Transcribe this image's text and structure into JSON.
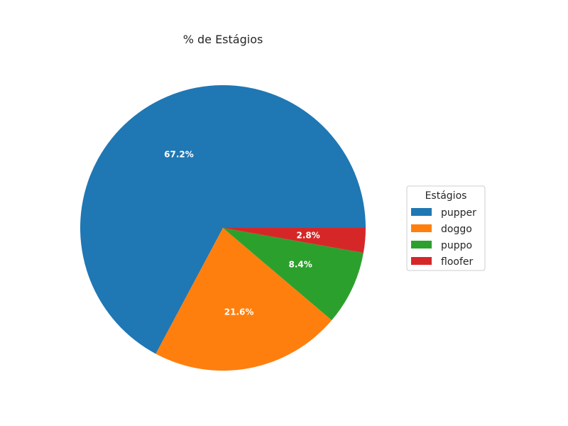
{
  "chart_data": {
    "type": "pie",
    "title": "% de Estágios",
    "categories": [
      "pupper",
      "doggo",
      "puppo",
      "floofer"
    ],
    "values": [
      67.2,
      21.6,
      8.4,
      2.8
    ],
    "value_labels": [
      "67.2%",
      "21.6%",
      "8.4%",
      "2.8%"
    ],
    "colors": [
      "#1f77b4",
      "#ff7f0e",
      "#2ca02c",
      "#d62728"
    ],
    "start_angle_deg": 0,
    "direction": "counterclockwise",
    "legend": {
      "title": "Estágios",
      "placement": "right"
    }
  }
}
